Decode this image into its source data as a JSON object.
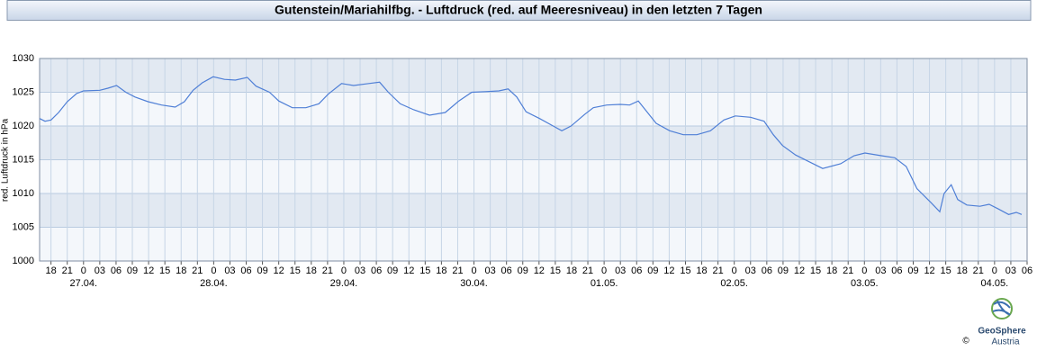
{
  "chart_data": {
    "type": "line",
    "title": "Gutenstein/Mariahilfbg. - Luftdruck (red. auf Meeresniveau) in den letzten 7 Tagen",
    "y_label": "red. Luftdruck in hPa",
    "x": [
      -8.1,
      -7.1,
      -6,
      -4.6,
      -3,
      -1.3,
      0,
      3,
      4.5,
      6.1,
      7.8,
      9.5,
      11.9,
      14.4,
      16.9,
      18.6,
      20.2,
      21.9,
      23.9,
      26,
      28,
      30.2,
      31.8,
      34.3,
      36,
      38.5,
      41,
      43.4,
      45.1,
      47.6,
      49.8,
      52.6,
      54.6,
      56.2,
      58.4,
      60.9,
      63.8,
      66.7,
      69.2,
      71.6,
      74.1,
      76.6,
      78.3,
      79.9,
      81.6,
      84.1,
      86.6,
      88.2,
      89.9,
      92.4,
      94,
      96.5,
      99,
      100.7,
      102.3,
      104,
      105.6,
      108.1,
      110.6,
      113.1,
      115.6,
      118.1,
      120.2,
      123,
      125.5,
      127.2,
      128.9,
      131.3,
      133.8,
      136.3,
      139.6,
      142.1,
      144.1,
      147.1,
      149.6,
      151.7,
      153.7,
      156.2,
      157.9,
      158.7,
      160,
      161.2,
      162.9,
      165.3,
      167,
      168.7,
      170.6,
      172,
      173
    ],
    "series": [
      {
        "color": "#4f7fd6",
        "values": [
          1021.1,
          1020.7,
          1020.9,
          1022,
          1023.6,
          1024.8,
          1025.2,
          1025.3,
          1025.6,
          1026,
          1025,
          1024.3,
          1023.6,
          1023.1,
          1022.8,
          1023.6,
          1025.3,
          1026.4,
          1027.3,
          1026.9,
          1026.8,
          1027.2,
          1025.9,
          1025,
          1023.7,
          1022.7,
          1022.7,
          1023.3,
          1024.7,
          1026.3,
          1026,
          1026.3,
          1026.5,
          1025,
          1023.3,
          1022.4,
          1021.6,
          1022,
          1023.7,
          1025,
          1025.1,
          1025.2,
          1025.5,
          1024.3,
          1022.1,
          1021.1,
          1020,
          1019.3,
          1020,
          1021.7,
          1022.7,
          1023.1,
          1023.2,
          1023.1,
          1023.7,
          1022,
          1020.4,
          1019.3,
          1018.7,
          1018.7,
          1019.3,
          1020.9,
          1021.5,
          1021.3,
          1020.7,
          1018.7,
          1017.1,
          1015.7,
          1014.7,
          1013.7,
          1014.4,
          1015.6,
          1016,
          1015.6,
          1015.3,
          1014,
          1010.7,
          1008.7,
          1007.3,
          1010,
          1011.3,
          1009.1,
          1008.3,
          1008.1,
          1008.4,
          1007.7,
          1006.9,
          1007.2,
          1006.9
        ]
      }
    ],
    "xlim": [
      -8.1,
      174
    ],
    "ylim": [
      1000,
      1030
    ],
    "yticks": [
      1000,
      1005,
      1010,
      1015,
      1020,
      1025,
      1030
    ],
    "xticks": [
      {
        "value": -6,
        "label": "18"
      },
      {
        "value": -3,
        "label": "21"
      },
      0,
      {
        "value": 3,
        "label": "03"
      },
      {
        "value": 6,
        "label": "06"
      },
      {
        "value": 9,
        "label": "09"
      },
      {
        "value": 12,
        "label": "12"
      },
      {
        "value": 15,
        "label": "15"
      },
      {
        "value": 18,
        "label": "18"
      },
      {
        "value": 21,
        "label": "21"
      },
      {
        "value": 24,
        "label": "0"
      },
      {
        "value": 27,
        "label": "03"
      },
      {
        "value": 30,
        "label": "06"
      },
      {
        "value": 33,
        "label": "09"
      },
      {
        "value": 36,
        "label": "12"
      },
      {
        "value": 39,
        "label": "15"
      },
      {
        "value": 42,
        "label": "18"
      },
      {
        "value": 45,
        "label": "21"
      },
      {
        "value": 48,
        "label": "0"
      },
      {
        "value": 51,
        "label": "03"
      },
      {
        "value": 54,
        "label": "06"
      },
      {
        "value": 57,
        "label": "09"
      },
      {
        "value": 60,
        "label": "12"
      },
      {
        "value": 63,
        "label": "15"
      },
      {
        "value": 66,
        "label": "18"
      },
      {
        "value": 69,
        "label": "21"
      },
      {
        "value": 72,
        "label": "0"
      },
      {
        "value": 75,
        "label": "03"
      },
      {
        "value": 78,
        "label": "06"
      },
      {
        "value": 81,
        "label": "09"
      },
      {
        "value": 84,
        "label": "12"
      },
      {
        "value": 87,
        "label": "15"
      },
      {
        "value": 90,
        "label": "18"
      },
      {
        "value": 93,
        "label": "21"
      },
      {
        "value": 96,
        "label": "0"
      },
      {
        "value": 99,
        "label": "03"
      },
      {
        "value": 102,
        "label": "06"
      },
      {
        "value": 105,
        "label": "09"
      },
      {
        "value": 108,
        "label": "12"
      },
      {
        "value": 111,
        "label": "15"
      },
      {
        "value": 114,
        "label": "18"
      },
      {
        "value": 117,
        "label": "21"
      },
      {
        "value": 120,
        "label": "0"
      },
      {
        "value": 123,
        "label": "03"
      },
      {
        "value": 126,
        "label": "06"
      },
      {
        "value": 129,
        "label": "09"
      },
      {
        "value": 132,
        "label": "12"
      },
      {
        "value": 135,
        "label": "15"
      },
      {
        "value": 138,
        "label": "18"
      },
      {
        "value": 141,
        "label": "21"
      },
      {
        "value": 144,
        "label": "0"
      },
      {
        "value": 147,
        "label": "03"
      },
      {
        "value": 150,
        "label": "06"
      },
      {
        "value": 153,
        "label": "09"
      },
      {
        "value": 156,
        "label": "12"
      },
      {
        "value": 159,
        "label": "15"
      },
      {
        "value": 162,
        "label": "18"
      },
      {
        "value": 165,
        "label": "21"
      },
      {
        "value": 168,
        "label": "0"
      },
      {
        "value": 171,
        "label": "03"
      },
      {
        "value": 174,
        "label": "06"
      }
    ],
    "day_labels": [
      {
        "value": 0,
        "label": "27.04."
      },
      {
        "value": 24,
        "label": "28.04."
      },
      {
        "value": 48,
        "label": "29.04."
      },
      {
        "value": 72,
        "label": "30.04."
      },
      {
        "value": 96,
        "label": "01.05."
      },
      {
        "value": 120,
        "label": "02.05."
      },
      {
        "value": 144,
        "label": "03.05."
      },
      {
        "value": 168,
        "label": "04.05."
      }
    ],
    "grid": true
  },
  "logo": {
    "name": "GeoSphere",
    "sub": "Austria",
    "copyright": "©"
  }
}
